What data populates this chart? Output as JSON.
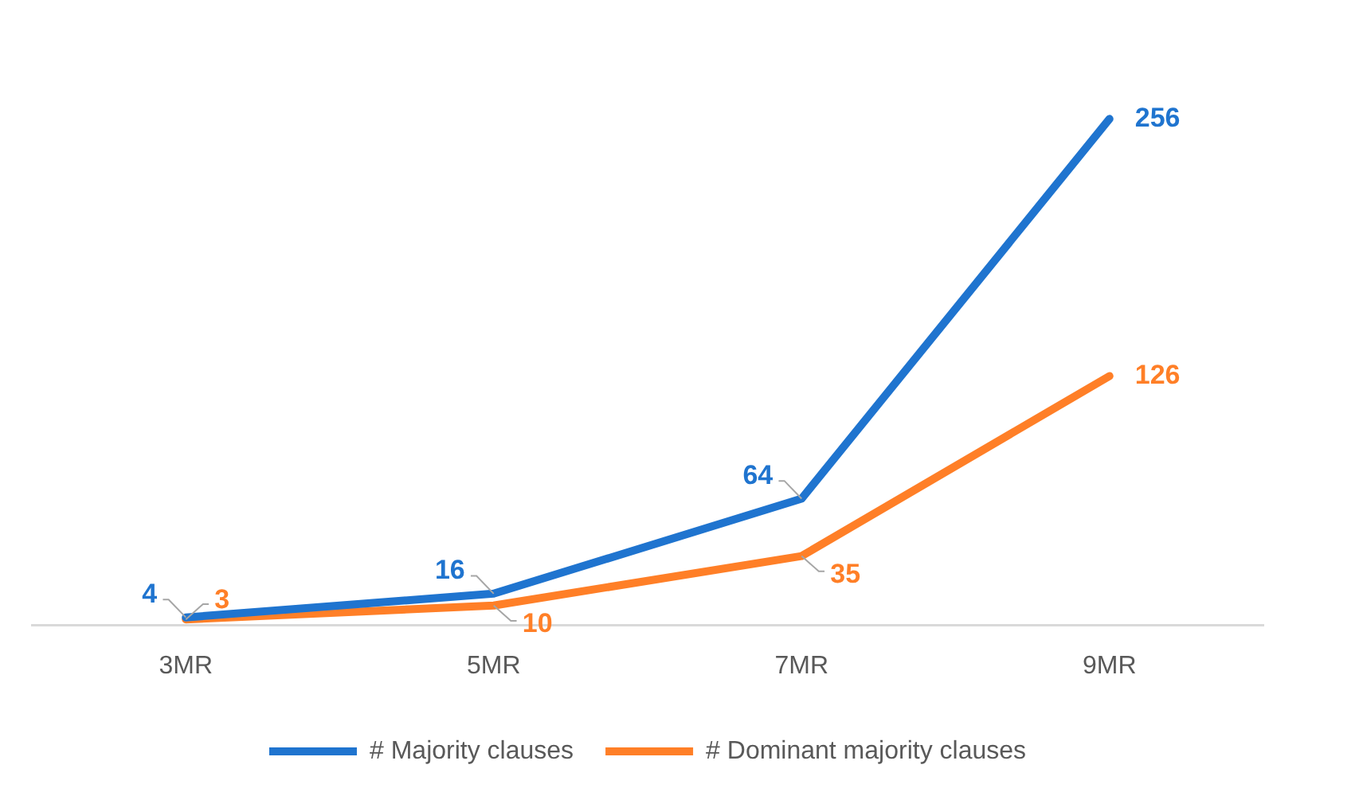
{
  "chart_data": {
    "type": "line",
    "categories": [
      "3MR",
      "5MR",
      "7MR",
      "9MR"
    ],
    "series": [
      {
        "name": "# Majority clauses",
        "color": "#1f74cf",
        "values": [
          4,
          16,
          64,
          256
        ]
      },
      {
        "name": "# Dominant majority clauses",
        "color": "#ff7f27",
        "values": [
          3,
          10,
          35,
          126
        ]
      }
    ],
    "data_labels": true,
    "legend": "bottom",
    "grid": false,
    "marker": "none",
    "line_style": "solid"
  }
}
